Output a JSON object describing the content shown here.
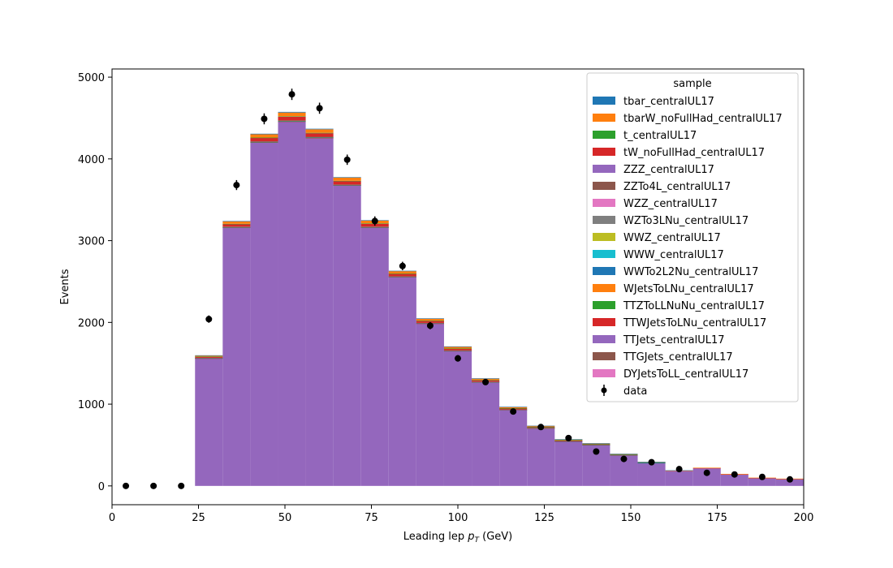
{
  "chart_data": {
    "type": "bar",
    "title": "",
    "xlabel": "Leading lep p",
    "xlabel_sub": "T",
    "xlabel_unit": " (GeV)",
    "ylabel": "Events",
    "xlim": [
      0,
      200
    ],
    "ylim": [
      -230,
      5100
    ],
    "xticks": [
      0,
      25,
      50,
      75,
      100,
      125,
      150,
      175,
      200
    ],
    "yticks": [
      0,
      1000,
      2000,
      3000,
      4000,
      5000
    ],
    "bin_edges": [
      24,
      32,
      40,
      48,
      56,
      64,
      72,
      80,
      88,
      96,
      104,
      112,
      120,
      128,
      136,
      144,
      152,
      160,
      168,
      176,
      184,
      192,
      200
    ],
    "legend_title": "sample",
    "legend_location": "upper right",
    "series": [
      {
        "name": "tbar_centralUL17",
        "color": "#1f77b4",
        "values": [
          3,
          5,
          7,
          8,
          7,
          6,
          5,
          4,
          3,
          3,
          2,
          2,
          1,
          1,
          1,
          1,
          1,
          1,
          0,
          0,
          0,
          0
        ]
      },
      {
        "name": "tbarW_noFullHad_centralUL17",
        "color": "#ff7f0e",
        "values": [
          12,
          30,
          40,
          45,
          43,
          40,
          35,
          30,
          25,
          22,
          18,
          15,
          12,
          10,
          8,
          7,
          6,
          5,
          4,
          3,
          3,
          2
        ]
      },
      {
        "name": "t_centralUL17",
        "color": "#2ca02c",
        "values": [
          2,
          4,
          5,
          6,
          5,
          5,
          4,
          3,
          3,
          2,
          2,
          1,
          1,
          1,
          1,
          1,
          1,
          0,
          0,
          0,
          0,
          0
        ]
      },
      {
        "name": "tW_noFullHad_centralUL17",
        "color": "#d62728",
        "values": [
          14,
          30,
          40,
          45,
          43,
          40,
          35,
          30,
          25,
          22,
          18,
          15,
          12,
          10,
          8,
          7,
          6,
          5,
          4,
          3,
          3,
          2
        ]
      },
      {
        "name": "ZZZ_centralUL17",
        "color": "#9467bd",
        "values": [
          0,
          0,
          0,
          0,
          0,
          0,
          0,
          0,
          0,
          0,
          0,
          0,
          0,
          0,
          0,
          0,
          0,
          0,
          0,
          0,
          0,
          0
        ]
      },
      {
        "name": "ZZTo4L_centralUL17",
        "color": "#8c564b",
        "values": [
          2,
          3,
          4,
          4,
          4,
          3,
          3,
          2,
          2,
          2,
          1,
          1,
          1,
          1,
          1,
          1,
          0,
          0,
          0,
          0,
          0,
          0
        ]
      },
      {
        "name": "WZZ_centralUL17",
        "color": "#e377c2",
        "values": [
          0,
          0,
          0,
          0,
          0,
          0,
          0,
          0,
          0,
          0,
          0,
          0,
          0,
          0,
          0,
          0,
          0,
          0,
          0,
          0,
          0,
          0
        ]
      },
      {
        "name": "WZTo3LNu_centralUL17",
        "color": "#7f7f7f",
        "values": [
          1,
          2,
          2,
          2,
          2,
          2,
          2,
          1,
          1,
          1,
          1,
          1,
          1,
          0,
          0,
          0,
          0,
          0,
          0,
          0,
          0,
          0
        ]
      },
      {
        "name": "WWZ_centralUL17",
        "color": "#bcbd22",
        "values": [
          0,
          0,
          0,
          0,
          0,
          0,
          0,
          0,
          0,
          0,
          0,
          0,
          0,
          0,
          0,
          0,
          0,
          0,
          0,
          0,
          0,
          0
        ]
      },
      {
        "name": "WWW_centralUL17",
        "color": "#17becf",
        "values": [
          0,
          0,
          0,
          0,
          0,
          0,
          0,
          0,
          0,
          0,
          0,
          0,
          0,
          0,
          0,
          0,
          0,
          0,
          0,
          0,
          0,
          0
        ]
      },
      {
        "name": "WWTo2L2Nu_centralUL17",
        "color": "#1f77b4",
        "values": [
          2,
          3,
          4,
          4,
          4,
          3,
          3,
          3,
          2,
          2,
          2,
          1,
          1,
          1,
          1,
          1,
          1,
          0,
          0,
          0,
          0,
          0
        ]
      },
      {
        "name": "WJetsToLNu_centralUL17",
        "color": "#ff7f0e",
        "values": [
          0,
          0,
          0,
          0,
          0,
          0,
          0,
          0,
          0,
          0,
          0,
          0,
          0,
          0,
          0,
          0,
          0,
          0,
          0,
          0,
          0,
          0
        ]
      },
      {
        "name": "TTZToLLNuNu_centralUL17",
        "color": "#2ca02c",
        "values": [
          1,
          2,
          3,
          3,
          3,
          2,
          2,
          2,
          2,
          1,
          1,
          1,
          1,
          1,
          1,
          0,
          0,
          0,
          0,
          0,
          0,
          0
        ]
      },
      {
        "name": "TTWJetsToLNu_centralUL17",
        "color": "#d62728",
        "values": [
          1,
          2,
          3,
          3,
          3,
          2,
          2,
          2,
          2,
          1,
          1,
          1,
          1,
          1,
          1,
          0,
          0,
          0,
          0,
          0,
          0,
          0
        ]
      },
      {
        "name": "TTJets_centralUL17",
        "color": "#9467bd",
        "values": [
          1560,
          3160,
          4200,
          4455,
          4255,
          3675,
          3160,
          2555,
          1985,
          1650,
          1270,
          930,
          705,
          545,
          500,
          375,
          280,
          180,
          215,
          140,
          95,
          85
        ]
      },
      {
        "name": "TTGJets_centralUL17",
        "color": "#8c564b",
        "values": [
          0,
          0,
          0,
          0,
          0,
          0,
          0,
          0,
          0,
          0,
          0,
          0,
          0,
          0,
          0,
          0,
          0,
          0,
          0,
          0,
          0,
          0
        ]
      },
      {
        "name": "DYJetsToLL_centralUL17",
        "color": "#e377c2",
        "values": [
          0,
          0,
          0,
          0,
          0,
          0,
          0,
          0,
          0,
          0,
          0,
          0,
          0,
          0,
          0,
          0,
          0,
          0,
          0,
          0,
          0,
          0
        ]
      }
    ],
    "data_points": {
      "name": "data",
      "x": [
        4,
        12,
        20,
        28,
        36,
        44,
        52,
        60,
        68,
        76,
        84,
        92,
        100,
        108,
        116,
        124,
        132,
        140,
        148,
        156,
        164,
        172,
        180,
        188,
        196
      ],
      "y": [
        0,
        0,
        0,
        2040,
        3680,
        4490,
        4790,
        4620,
        3990,
        3240,
        2690,
        1960,
        1560,
        1270,
        910,
        720,
        585,
        420,
        330,
        290,
        205,
        160,
        140,
        110,
        80
      ],
      "err": [
        0,
        0,
        0,
        45,
        61,
        67,
        69,
        68,
        63,
        57,
        52,
        44,
        40,
        36,
        30,
        27,
        24,
        20,
        18,
        17,
        14,
        13,
        12,
        10,
        9
      ]
    }
  }
}
